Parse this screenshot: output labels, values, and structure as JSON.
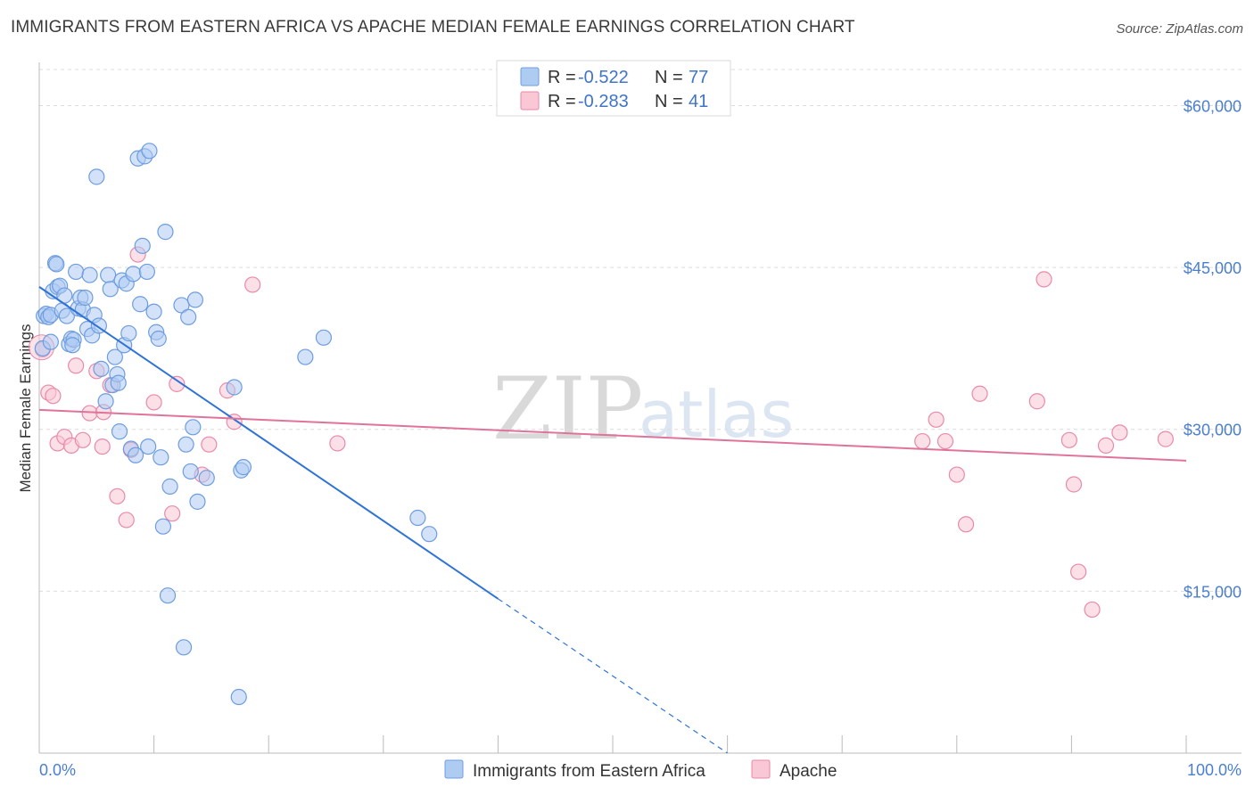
{
  "title": "IMMIGRANTS FROM EASTERN AFRICA VS APACHE MEDIAN FEMALE EARNINGS CORRELATION CHART",
  "source": "Source: ZipAtlas.com",
  "watermark": {
    "part1": "ZIP",
    "part2": "atlas"
  },
  "legend": {
    "rows": [
      {
        "r_label": "R =",
        "r_value": "-0.522",
        "n_label": "N =",
        "n_value": "77",
        "color": "#aecbf2",
        "stroke": "#6d9de0"
      },
      {
        "r_label": "R =",
        "r_value": "-0.283",
        "n_label": "N =",
        "n_value": "41",
        "color": "#f9c7d6",
        "stroke": "#e98aa8"
      }
    ]
  },
  "chart_data": {
    "type": "scatter",
    "title": "IMMIGRANTS FROM EASTERN AFRICA VS APACHE MEDIAN FEMALE EARNINGS CORRELATION CHART",
    "xlabel": "",
    "ylabel": "Median Female Earnings",
    "xlim": [
      0,
      100
    ],
    "ylim": [
      0,
      64000
    ],
    "x_tick_labels": [
      {
        "value": 0,
        "label": "0.0%"
      },
      {
        "value": 100,
        "label": "100.0%"
      }
    ],
    "y_ticks": [
      {
        "value": 15000,
        "label": "$15,000"
      },
      {
        "value": 30000,
        "label": "$30,000"
      },
      {
        "value": 45000,
        "label": "$45,000"
      },
      {
        "value": 60000,
        "label": "$60,000"
      }
    ],
    "series": [
      {
        "name": "Immigrants from Eastern Africa",
        "color": "#aecbf2",
        "stroke": "#6d9de0",
        "line_color": "#2f73d6",
        "trend": {
          "x0": 0,
          "y0": 43200,
          "x1": 40,
          "y1": 14300,
          "dash_to_x": 60,
          "dash_to_y": 0
        },
        "points": [
          [
            0.3,
            37500
          ],
          [
            0.4,
            40500
          ],
          [
            0.6,
            40700
          ],
          [
            0.8,
            40400
          ],
          [
            1.0,
            40600
          ],
          [
            1.2,
            42800
          ],
          [
            1.4,
            45400
          ],
          [
            1.5,
            45300
          ],
          [
            1.6,
            43200
          ],
          [
            1.8,
            43300
          ],
          [
            2.0,
            41000
          ],
          [
            2.2,
            42400
          ],
          [
            2.4,
            40500
          ],
          [
            2.6,
            37900
          ],
          [
            2.8,
            38400
          ],
          [
            3.0,
            38300
          ],
          [
            3.2,
            44600
          ],
          [
            3.4,
            41200
          ],
          [
            3.6,
            42200
          ],
          [
            3.8,
            41100
          ],
          [
            4.0,
            42200
          ],
          [
            4.2,
            39300
          ],
          [
            4.4,
            44300
          ],
          [
            4.6,
            38700
          ],
          [
            4.8,
            40600
          ],
          [
            5.0,
            53400
          ],
          [
            5.2,
            39600
          ],
          [
            5.4,
            35600
          ],
          [
            5.8,
            32600
          ],
          [
            6.0,
            44300
          ],
          [
            6.2,
            43000
          ],
          [
            6.4,
            34100
          ],
          [
            6.6,
            36700
          ],
          [
            6.8,
            35100
          ],
          [
            7.0,
            29800
          ],
          [
            7.2,
            43800
          ],
          [
            7.4,
            37800
          ],
          [
            7.6,
            43500
          ],
          [
            7.8,
            38900
          ],
          [
            8.0,
            28200
          ],
          [
            8.2,
            44400
          ],
          [
            8.4,
            27600
          ],
          [
            8.6,
            55100
          ],
          [
            8.8,
            41600
          ],
          [
            9.0,
            47000
          ],
          [
            9.2,
            55300
          ],
          [
            9.4,
            44600
          ],
          [
            9.6,
            55800
          ],
          [
            10.0,
            40900
          ],
          [
            10.2,
            39000
          ],
          [
            10.4,
            38400
          ],
          [
            10.6,
            27400
          ],
          [
            10.8,
            21000
          ],
          [
            11.0,
            48300
          ],
          [
            11.2,
            14600
          ],
          [
            11.4,
            24700
          ],
          [
            12.4,
            41500
          ],
          [
            12.6,
            9800
          ],
          [
            12.8,
            28600
          ],
          [
            13.0,
            40400
          ],
          [
            13.2,
            26100
          ],
          [
            13.4,
            30200
          ],
          [
            13.6,
            42000
          ],
          [
            13.8,
            23300
          ],
          [
            14.6,
            25500
          ],
          [
            17.0,
            33900
          ],
          [
            17.4,
            5200
          ],
          [
            17.6,
            26200
          ],
          [
            17.8,
            26500
          ],
          [
            23.2,
            36700
          ],
          [
            24.8,
            38500
          ],
          [
            33.0,
            21800
          ],
          [
            34.0,
            20300
          ],
          [
            1.0,
            38100
          ],
          [
            2.9,
            37800
          ],
          [
            6.9,
            34300
          ],
          [
            9.5,
            28400
          ]
        ]
      },
      {
        "name": "Apache",
        "color": "#f9c7d6",
        "stroke": "#e98aa8",
        "line_color": "#e0739a",
        "trend": {
          "x0": 0,
          "y0": 31800,
          "x1": 100,
          "y1": 27100
        },
        "points": [
          [
            0.3,
            37400
          ],
          [
            0.8,
            33400
          ],
          [
            1.2,
            33100
          ],
          [
            1.6,
            28700
          ],
          [
            2.2,
            29300
          ],
          [
            2.8,
            28500
          ],
          [
            3.2,
            35900
          ],
          [
            3.8,
            29000
          ],
          [
            4.4,
            31500
          ],
          [
            5.0,
            35400
          ],
          [
            5.6,
            31600
          ],
          [
            6.2,
            34100
          ],
          [
            6.8,
            23800
          ],
          [
            7.6,
            21600
          ],
          [
            8.0,
            28100
          ],
          [
            8.6,
            46200
          ],
          [
            10.0,
            32500
          ],
          [
            11.6,
            22200
          ],
          [
            12.0,
            34200
          ],
          [
            14.2,
            25800
          ],
          [
            14.8,
            28600
          ],
          [
            16.4,
            33600
          ],
          [
            17.0,
            30700
          ],
          [
            18.6,
            43400
          ],
          [
            26.0,
            28700
          ],
          [
            77.0,
            28900
          ],
          [
            78.2,
            30900
          ],
          [
            79.0,
            28900
          ],
          [
            80.0,
            25800
          ],
          [
            80.8,
            21200
          ],
          [
            82.0,
            33300
          ],
          [
            87.0,
            32600
          ],
          [
            87.6,
            43900
          ],
          [
            89.8,
            29000
          ],
          [
            90.2,
            24900
          ],
          [
            90.6,
            16800
          ],
          [
            91.8,
            13300
          ],
          [
            93.0,
            28500
          ],
          [
            94.2,
            29700
          ],
          [
            98.2,
            29100
          ],
          [
            5.5,
            28400
          ]
        ]
      }
    ],
    "gridlines": "horizontal dashed",
    "legend_position": "top-center"
  }
}
